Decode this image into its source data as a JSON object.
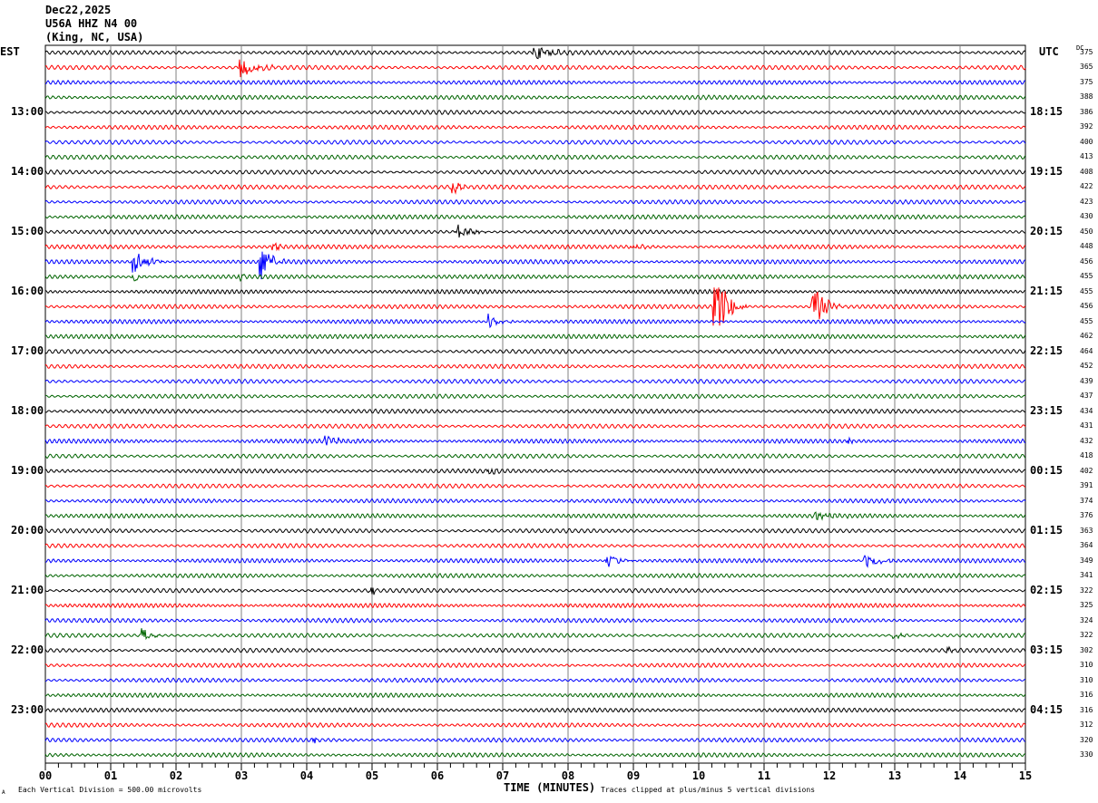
{
  "header": {
    "date": "Dec22,2025",
    "station": "U56A HHZ N4 00",
    "location": "(King, NC, USA)"
  },
  "left_tz": "EST",
  "right_tz": "UTC",
  "dc_label": "DC",
  "footer": {
    "scale_note": "Each Vertical Division =  500.00 microvolts",
    "xlabel": "TIME (MINUTES)",
    "clip_note": "Traces clipped at plus/minus 5 vertical divisions",
    "corner_mark": "A"
  },
  "colors": {
    "black": "#000000",
    "red": "#ff0000",
    "blue": "#0000ff",
    "green": "#006400",
    "grid": "#808080"
  },
  "chart_data": {
    "type": "line",
    "title": "U56A HHZ N4 00 (King, NC, USA) Dec22,2025",
    "xlabel": "TIME (MINUTES)",
    "xlim": [
      0,
      15
    ],
    "x_ticks": [
      "00",
      "01",
      "02",
      "03",
      "04",
      "05",
      "06",
      "07",
      "08",
      "09",
      "10",
      "11",
      "12",
      "13",
      "14",
      "15"
    ],
    "minutes_per_trace": 15,
    "trace_count": 48,
    "trace_colors": [
      "#000000",
      "#ff0000",
      "#0000ff",
      "#006400"
    ],
    "left_hour_labels": [
      {
        "trace": 4,
        "label": "13:00"
      },
      {
        "trace": 8,
        "label": "14:00"
      },
      {
        "trace": 12,
        "label": "15:00"
      },
      {
        "trace": 16,
        "label": "16:00"
      },
      {
        "trace": 20,
        "label": "17:00"
      },
      {
        "trace": 24,
        "label": "18:00"
      },
      {
        "trace": 28,
        "label": "19:00"
      },
      {
        "trace": 32,
        "label": "20:00"
      },
      {
        "trace": 36,
        "label": "21:00"
      },
      {
        "trace": 40,
        "label": "22:00"
      },
      {
        "trace": 44,
        "label": "23:00"
      }
    ],
    "right_hour_labels": [
      {
        "trace": 4,
        "label": "18:15"
      },
      {
        "trace": 8,
        "label": "19:15"
      },
      {
        "trace": 12,
        "label": "20:15"
      },
      {
        "trace": 16,
        "label": "21:15"
      },
      {
        "trace": 20,
        "label": "22:15"
      },
      {
        "trace": 24,
        "label": "23:15"
      },
      {
        "trace": 28,
        "label": "00:15"
      },
      {
        "trace": 32,
        "label": "01:15"
      },
      {
        "trace": 36,
        "label": "02:15"
      },
      {
        "trace": 40,
        "label": "03:15"
      },
      {
        "trace": 44,
        "label": "04:15"
      }
    ],
    "dc_offsets": [
      "375",
      "365",
      "375",
      "388",
      "386",
      "392",
      "400",
      "413",
      "408",
      "422",
      "423",
      "430",
      "450",
      "448",
      "456",
      "455",
      "455",
      "456",
      "455",
      "462",
      "464",
      "452",
      "439",
      "437",
      "434",
      "431",
      "432",
      "418",
      "402",
      "391",
      "374",
      "376",
      "363",
      "364",
      "349",
      "341",
      "322",
      "325",
      "324",
      "322",
      "302",
      "310",
      "310",
      "316",
      "316",
      "312",
      "320",
      "330"
    ],
    "events": [
      {
        "trace": 0,
        "minute": 7.5,
        "amp": 0.9,
        "dur": 0.6
      },
      {
        "trace": 1,
        "minute": 3.0,
        "amp": 1.3,
        "dur": 0.6
      },
      {
        "trace": 9,
        "minute": 6.25,
        "amp": 0.8,
        "dur": 0.3
      },
      {
        "trace": 12,
        "minute": 6.3,
        "amp": 1.0,
        "dur": 0.5
      },
      {
        "trace": 13,
        "minute": 3.5,
        "amp": 0.5,
        "dur": 0.3
      },
      {
        "trace": 13,
        "minute": 9.0,
        "amp": 0.4,
        "dur": 0.4
      },
      {
        "trace": 14,
        "minute": 1.35,
        "amp": 1.6,
        "dur": 0.5
      },
      {
        "trace": 14,
        "minute": 3.3,
        "amp": 2.0,
        "dur": 0.4
      },
      {
        "trace": 15,
        "minute": 1.35,
        "amp": 0.8,
        "dur": 0.2
      },
      {
        "trace": 15,
        "minute": 3.0,
        "amp": 0.6,
        "dur": 0.1
      },
      {
        "trace": 17,
        "minute": 10.25,
        "amp": 5.0,
        "dur": 0.5
      },
      {
        "trace": 17,
        "minute": 11.75,
        "amp": 2.5,
        "dur": 0.5
      },
      {
        "trace": 18,
        "minute": 6.8,
        "amp": 1.4,
        "dur": 0.4
      },
      {
        "trace": 26,
        "minute": 4.3,
        "amp": 0.5,
        "dur": 0.7
      },
      {
        "trace": 26,
        "minute": 12.3,
        "amp": 0.6,
        "dur": 0.1
      },
      {
        "trace": 28,
        "minute": 6.8,
        "amp": 0.5,
        "dur": 0.2
      },
      {
        "trace": 31,
        "minute": 11.8,
        "amp": 0.4,
        "dur": 0.6
      },
      {
        "trace": 34,
        "minute": 8.6,
        "amp": 1.0,
        "dur": 0.5
      },
      {
        "trace": 34,
        "minute": 12.55,
        "amp": 1.1,
        "dur": 0.5
      },
      {
        "trace": 36,
        "minute": 5.0,
        "amp": 0.7,
        "dur": 0.1
      },
      {
        "trace": 39,
        "minute": 1.5,
        "amp": 0.9,
        "dur": 0.3
      },
      {
        "trace": 39,
        "minute": 13.0,
        "amp": 0.4,
        "dur": 0.4
      },
      {
        "trace": 40,
        "minute": 13.8,
        "amp": 0.5,
        "dur": 0.2
      },
      {
        "trace": 46,
        "minute": 4.1,
        "amp": 0.5,
        "dur": 0.2
      }
    ]
  }
}
